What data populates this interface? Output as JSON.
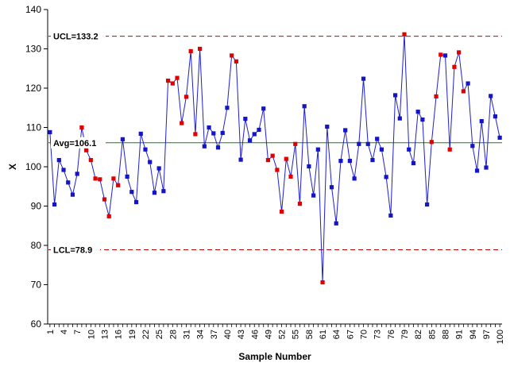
{
  "chart_data": {
    "type": "line",
    "title": "",
    "xlabel": "Sample Number",
    "ylabel": "X",
    "ylim": [
      60,
      140
    ],
    "y_ticks": [
      60,
      70,
      80,
      90,
      100,
      110,
      120,
      130,
      140
    ],
    "x_tick_labels": [
      1,
      4,
      7,
      10,
      13,
      16,
      19,
      22,
      25,
      28,
      31,
      34,
      37,
      40,
      43,
      46,
      49,
      52,
      55,
      58,
      61,
      64,
      67,
      70,
      73,
      76,
      79,
      82,
      85,
      88,
      91,
      94,
      97,
      100
    ],
    "grid": false,
    "colors": {
      "line": "#1f1fd0",
      "in_control_marker": "#1414c8",
      "flagged_marker": "#e00000",
      "center_line": "#1a7a1a",
      "control_limit": "#c00000"
    },
    "reference_lines": [
      {
        "label": "UCL=133.2",
        "value": 133.2,
        "style": "dashed"
      },
      {
        "label": "Avg=106.1",
        "value": 106.1,
        "style": "solid"
      },
      {
        "label": "LCL=78.9",
        "value": 78.9,
        "style": "dashed"
      }
    ],
    "series": [
      {
        "x": [
          1,
          2,
          3,
          4,
          5,
          6,
          7,
          8,
          9,
          10,
          11,
          12,
          13,
          14,
          15,
          16,
          17,
          18,
          19,
          20,
          21,
          22,
          23,
          24,
          25,
          26,
          27,
          28,
          29,
          30,
          31,
          32,
          33,
          34,
          35,
          36,
          37,
          38,
          39,
          40,
          41,
          42,
          43,
          44,
          45,
          46,
          47,
          48,
          49,
          50,
          51,
          52,
          53,
          54,
          55,
          56,
          57,
          58,
          59,
          60,
          61,
          62,
          63,
          64,
          65,
          66,
          67,
          68,
          69,
          70,
          71,
          72,
          73,
          74,
          75,
          76,
          77,
          78,
          79,
          80,
          81,
          82,
          83,
          84,
          85,
          86,
          87,
          88,
          89,
          90,
          91,
          92,
          93,
          94,
          95,
          96,
          97,
          98,
          99,
          100
        ],
        "values": [
          108.8,
          90.4,
          101.7,
          99.2,
          96.0,
          92.9,
          98.2,
          110.0,
          104.2,
          101.7,
          97.0,
          96.8,
          91.7,
          87.4,
          97.0,
          95.3,
          107.0,
          97.5,
          93.6,
          91.0,
          108.4,
          104.4,
          101.2,
          93.4,
          99.6,
          93.8,
          121.9,
          121.2,
          122.6,
          111.1,
          117.8,
          129.4,
          108.3,
          130.0,
          105.2,
          110.0,
          108.5,
          104.9,
          108.6,
          115.0,
          128.3,
          126.8,
          101.8,
          112.2,
          106.7,
          108.3,
          109.4,
          114.8,
          101.7,
          102.8,
          99.2,
          88.6,
          102.0,
          97.5,
          105.8,
          90.6,
          115.4,
          100.1,
          92.7,
          104.4,
          70.6,
          110.2,
          94.8,
          85.6,
          101.5,
          109.3,
          101.5,
          97.0,
          105.8,
          122.4,
          105.8,
          101.7,
          107.1,
          104.4,
          97.4,
          87.6,
          118.2,
          112.3,
          133.7,
          104.4,
          100.9,
          114.0,
          112.0,
          90.4,
          106.3,
          117.9,
          128.5,
          128.3,
          104.4,
          125.4,
          129.1,
          119.2,
          121.2,
          105.3,
          99.0,
          111.6,
          99.8,
          118.0,
          112.8,
          107.4
        ],
        "flagged": [
          8,
          9,
          10,
          11,
          12,
          13,
          14,
          15,
          16,
          27,
          28,
          29,
          30,
          31,
          32,
          33,
          34,
          41,
          42,
          49,
          50,
          51,
          52,
          53,
          54,
          55,
          56,
          61,
          79,
          85,
          86,
          87,
          89,
          90,
          91,
          92
        ]
      }
    ]
  }
}
